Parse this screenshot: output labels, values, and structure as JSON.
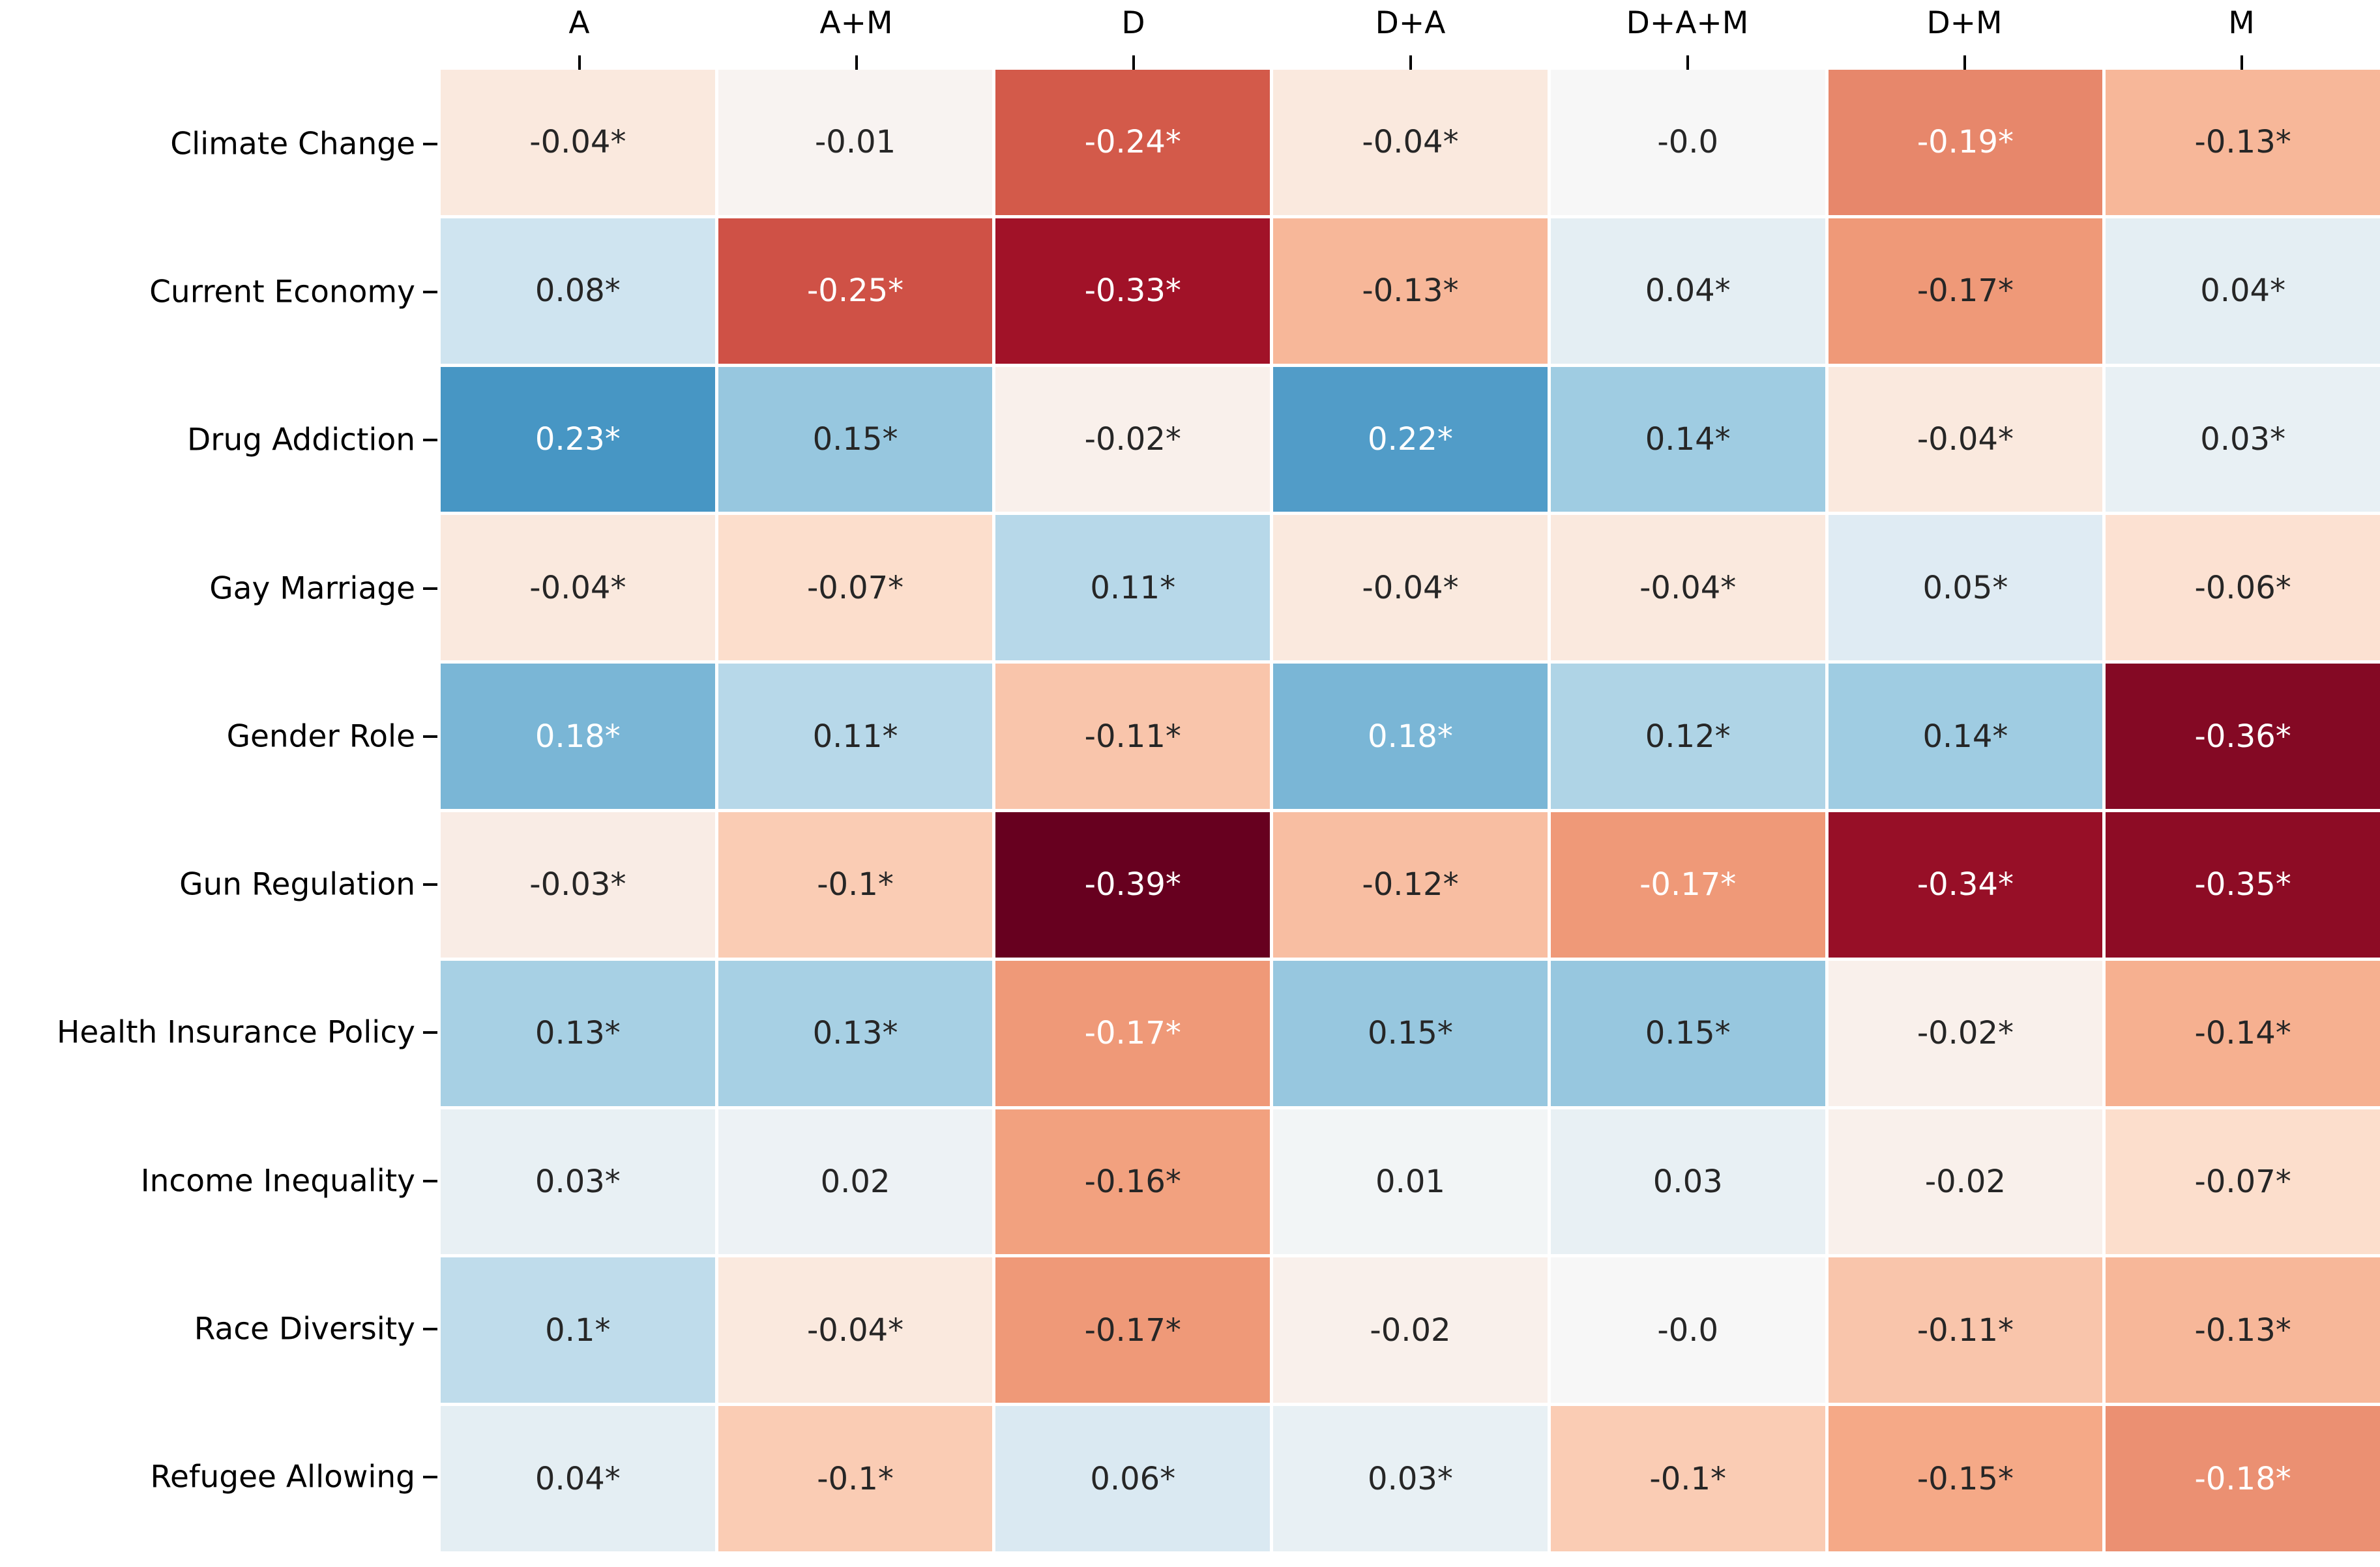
{
  "figure": {
    "background": "#ffffff",
    "description_visible_text_only": true
  },
  "chart_data": {
    "type": "heatmap",
    "columns": [
      "A",
      "A+M",
      "D",
      "D+A",
      "D+A+M",
      "D+M",
      "M"
    ],
    "rows": [
      "Climate Change",
      "Current Economy",
      "Drug Addiction",
      "Gay Marriage",
      "Gender Role",
      "Gun Regulation",
      "Health Insurance Policy",
      "Income Inequality",
      "Race Diversity",
      "Refugee Allowing"
    ],
    "values": [
      [
        -0.04,
        -0.01,
        -0.24,
        -0.04,
        -0.0,
        -0.19,
        -0.13
      ],
      [
        0.08,
        -0.25,
        -0.33,
        -0.13,
        0.04,
        -0.17,
        0.04
      ],
      [
        0.23,
        0.15,
        -0.02,
        0.22,
        0.14,
        -0.04,
        0.03
      ],
      [
        -0.04,
        -0.07,
        0.11,
        -0.04,
        -0.04,
        0.05,
        -0.06
      ],
      [
        0.18,
        0.11,
        -0.11,
        0.18,
        0.12,
        0.14,
        -0.36
      ],
      [
        -0.03,
        -0.1,
        -0.39,
        -0.12,
        -0.17,
        -0.34,
        -0.35
      ],
      [
        0.13,
        0.13,
        -0.17,
        0.15,
        0.15,
        -0.02,
        -0.14
      ],
      [
        0.03,
        0.02,
        -0.16,
        0.01,
        0.03,
        -0.02,
        -0.07
      ],
      [
        0.1,
        -0.04,
        -0.17,
        -0.02,
        -0.0,
        -0.11,
        -0.13
      ],
      [
        0.04,
        -0.1,
        0.06,
        0.03,
        -0.1,
        -0.15,
        -0.18
      ]
    ],
    "annotations": [
      [
        "-0.04*",
        "-0.01",
        "-0.24*",
        "-0.04*",
        "-0.0",
        "-0.19*",
        "-0.13*"
      ],
      [
        "0.08*",
        "-0.25*",
        "-0.33*",
        "-0.13*",
        "0.04*",
        "-0.17*",
        "0.04*"
      ],
      [
        "0.23*",
        "0.15*",
        "-0.02*",
        "0.22*",
        "0.14*",
        "-0.04*",
        "0.03*"
      ],
      [
        "-0.04*",
        "-0.07*",
        "0.11*",
        "-0.04*",
        "-0.04*",
        "0.05*",
        "-0.06*"
      ],
      [
        "0.18*",
        "0.11*",
        "-0.11*",
        "0.18*",
        "0.12*",
        "0.14*",
        "-0.36*"
      ],
      [
        "-0.03*",
        "-0.1*",
        "-0.39*",
        "-0.12*",
        "-0.17*",
        "-0.34*",
        "-0.35*"
      ],
      [
        "0.13*",
        "0.13*",
        "-0.17*",
        "0.15*",
        "0.15*",
        "-0.02*",
        "-0.14*"
      ],
      [
        "0.03*",
        "0.02",
        "-0.16*",
        "0.01",
        "0.03",
        "-0.02",
        "-0.07*"
      ],
      [
        "0.1*",
        "-0.04*",
        "-0.17*",
        "-0.02",
        "-0.0",
        "-0.11*",
        "-0.13*"
      ],
      [
        "0.04*",
        "-0.1*",
        "0.06*",
        "0.03*",
        "-0.1*",
        "-0.15*",
        "-0.18*"
      ]
    ],
    "white_text": [
      [
        0,
        0,
        1,
        0,
        0,
        1,
        0
      ],
      [
        0,
        1,
        1,
        0,
        0,
        0,
        0
      ],
      [
        1,
        0,
        0,
        1,
        0,
        0,
        0
      ],
      [
        0,
        0,
        0,
        0,
        0,
        0,
        0
      ],
      [
        1,
        0,
        0,
        1,
        0,
        0,
        1
      ],
      [
        0,
        0,
        1,
        0,
        1,
        1,
        1
      ],
      [
        0,
        0,
        1,
        0,
        0,
        0,
        0
      ],
      [
        0,
        0,
        0,
        0,
        0,
        0,
        0
      ],
      [
        0,
        0,
        0,
        0,
        0,
        0,
        0
      ],
      [
        0,
        0,
        0,
        0,
        0,
        0,
        1
      ]
    ],
    "significance_marker": "*",
    "colormap": {
      "name": "RdBu",
      "vmin": -0.39,
      "vmax": 0.39,
      "center": 0,
      "anchors": [
        "#67001f",
        "#b2182b",
        "#d6604d",
        "#f4a582",
        "#fddbc7",
        "#f7f7f7",
        "#d1e5f0",
        "#92c5de",
        "#4393c3",
        "#2166ac",
        "#053061"
      ]
    },
    "text_colors": {
      "dark": "#262626",
      "light": "#ffffff"
    },
    "grid_on": false,
    "legend": "none",
    "title": "",
    "xlabel": "",
    "ylabel": ""
  }
}
